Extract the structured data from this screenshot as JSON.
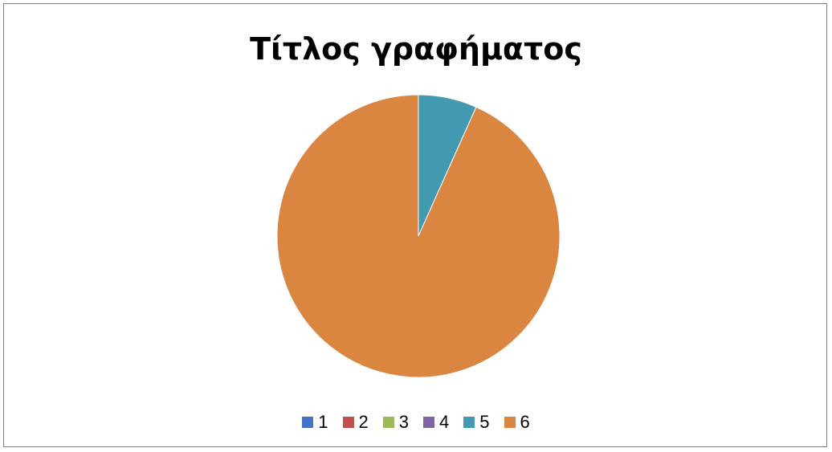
{
  "chart_data": {
    "type": "pie",
    "title": "Τίτλος γραφήματος",
    "categories": [
      "1",
      "2",
      "3",
      "4",
      "5",
      "6"
    ],
    "values": [
      0,
      0,
      0,
      0,
      6.7,
      93.3
    ],
    "colors": [
      "#4472c4",
      "#c0504d",
      "#9bbb59",
      "#8064a2",
      "#4bacc6",
      "#f79646"
    ],
    "legend_position": "bottom"
  }
}
